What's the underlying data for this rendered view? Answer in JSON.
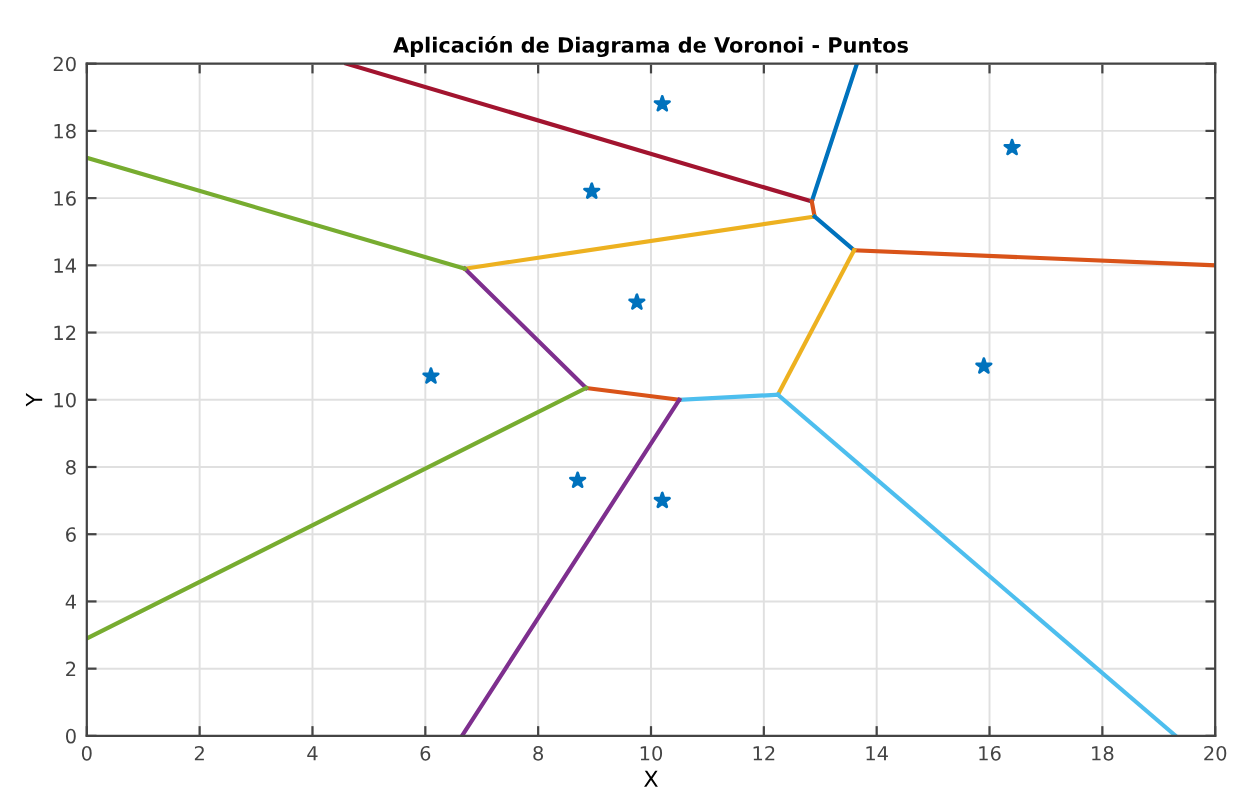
{
  "chart_data": {
    "type": "line",
    "title": "Aplicación de Diagrama de Voronoi - Puntos",
    "xlabel": "X",
    "ylabel": "Y",
    "xlim": [
      0,
      20
    ],
    "ylim": [
      0,
      20
    ],
    "xticks": [
      0,
      2,
      4,
      6,
      8,
      10,
      12,
      14,
      16,
      18,
      20
    ],
    "yticks": [
      0,
      2,
      4,
      6,
      8,
      10,
      12,
      14,
      16,
      18,
      20
    ],
    "grid": true,
    "line_style": "solid",
    "series": [
      {
        "type": "scatter",
        "marker": "star",
        "color": "#0072bd",
        "x": [
          10.2,
          8.95,
          16.4,
          9.75,
          6.1,
          15.9,
          8.7,
          10.2
        ],
        "values": [
          18.8,
          16.2,
          17.5,
          12.9,
          10.7,
          11.0,
          7.6,
          7.0
        ]
      },
      {
        "color": "#a2142f",
        "x": [
          4.6,
          12.85
        ],
        "values": [
          20,
          15.9
        ]
      },
      {
        "color": "#0072bd",
        "x": [
          12.85,
          13.65
        ],
        "values": [
          15.9,
          20
        ]
      },
      {
        "color": "#d95319",
        "x": [
          12.85,
          12.9
        ],
        "values": [
          15.9,
          15.45
        ]
      },
      {
        "color": "#edb120",
        "x": [
          6.7,
          12.9
        ],
        "values": [
          13.9,
          15.45
        ]
      },
      {
        "color": "#0072bd",
        "x": [
          12.9,
          13.6
        ],
        "values": [
          15.45,
          14.45
        ]
      },
      {
        "color": "#d95319",
        "x": [
          13.6,
          20
        ],
        "values": [
          14.45,
          14.0
        ]
      },
      {
        "color": "#edb120",
        "x": [
          13.6,
          12.25
        ],
        "values": [
          14.45,
          10.15
        ]
      },
      {
        "color": "#4dbeee",
        "x": [
          10.5,
          12.25
        ],
        "values": [
          10.0,
          10.15
        ]
      },
      {
        "color": "#4dbeee",
        "x": [
          12.25,
          19.3
        ],
        "values": [
          10.15,
          0
        ]
      },
      {
        "color": "#d95319",
        "x": [
          8.85,
          10.5
        ],
        "values": [
          10.35,
          10.0
        ]
      },
      {
        "color": "#7e2f8e",
        "x": [
          6.7,
          8.85
        ],
        "values": [
          13.9,
          10.35
        ]
      },
      {
        "color": "#7e2f8e",
        "x": [
          10.5,
          6.65
        ],
        "values": [
          10.0,
          0
        ]
      },
      {
        "color": "#77ac30",
        "x": [
          0,
          6.7
        ],
        "values": [
          17.2,
          13.9
        ]
      },
      {
        "color": "#77ac30",
        "x": [
          8.85,
          0
        ],
        "values": [
          10.35,
          2.9
        ]
      }
    ]
  }
}
